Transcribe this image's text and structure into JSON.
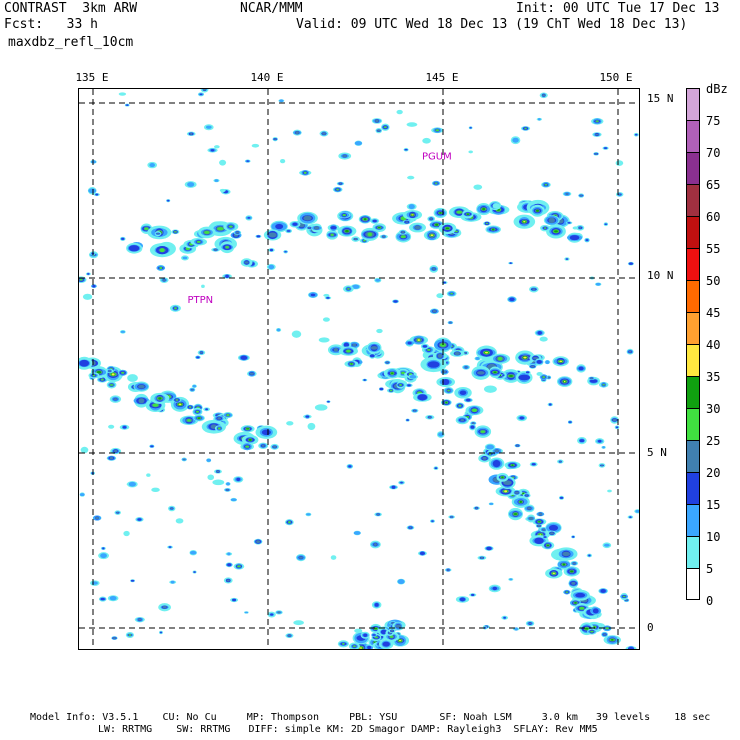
{
  "header": {
    "left_line1": "CONTRAST  3km ARW",
    "left_line2": "Fcst:   33 h",
    "left_line3": "maxdbz_refl_10cm",
    "center": "NCAR/MMM",
    "init": "Init: 00 UTC Tue 17 Dec 13",
    "valid": "Valid: 09 UTC Wed 18 Dec 13 (19 ChT Wed 18 Dec 13)"
  },
  "map": {
    "lon_labels": [
      "135 E",
      "140 E",
      "145 E",
      "150 E"
    ],
    "lat_labels": [
      "15 N",
      "10 N",
      "5 N",
      "0"
    ],
    "stations": [
      {
        "id": "PGUM",
        "lon": 144.8,
        "lat": 13.5
      },
      {
        "id": "PTPN",
        "lon": 138.1,
        "lat": 9.4
      }
    ],
    "extent": {
      "lon_min": 134.6,
      "lon_max": 150.6,
      "lat_min": -0.6,
      "lat_max": 15.4
    },
    "storm_bands": [
      {
        "name": "northern band",
        "points": [
          [
            135.6,
            11.2
          ],
          [
            138,
            11.0
          ],
          [
            140.5,
            11.6
          ],
          [
            143,
            11.4
          ],
          [
            145,
            11.6
          ],
          [
            147.5,
            11.8
          ],
          [
            149.2,
            11.3
          ]
        ],
        "intensity": 0.8
      },
      {
        "name": "central band",
        "points": [
          [
            144.2,
            8.0
          ],
          [
            145.5,
            7.7
          ],
          [
            147.5,
            7.4
          ],
          [
            149.5,
            7.2
          ]
        ],
        "intensity": 0.9
      },
      {
        "name": "mid line",
        "points": [
          [
            142,
            8.0
          ],
          [
            143.2,
            7.6
          ],
          [
            144.6,
            6.6
          ]
        ],
        "intensity": 0.7
      },
      {
        "name": "west band",
        "points": [
          [
            134.9,
            7.4
          ],
          [
            136.5,
            6.8
          ],
          [
            138.2,
            6.0
          ],
          [
            140,
            5.4
          ]
        ],
        "intensity": 0.85
      },
      {
        "name": "diagonal band",
        "points": [
          [
            145.3,
            6.8
          ],
          [
            146.2,
            5.2
          ],
          [
            147.3,
            3.6
          ],
          [
            148.2,
            2.2
          ],
          [
            149,
            0.8
          ],
          [
            149.8,
            -0.4
          ]
        ],
        "intensity": 0.75
      },
      {
        "name": "southern cluster",
        "points": [
          [
            142.2,
            -0.2
          ],
          [
            143.2,
            -0.3
          ],
          [
            143.9,
            0.0
          ]
        ],
        "intensity": 0.8
      }
    ]
  },
  "colorbar": {
    "unit": "dBz",
    "levels": [
      {
        "value": "75",
        "color": "#d3a5d8"
      },
      {
        "value": "70",
        "color": "#b060b8"
      },
      {
        "value": "65",
        "color": "#8a3090"
      },
      {
        "value": "60",
        "color": "#a03040"
      },
      {
        "value": "55",
        "color": "#c01010"
      },
      {
        "value": "50",
        "color": "#ee1010"
      },
      {
        "value": "45",
        "color": "#ff6a00"
      },
      {
        "value": "40",
        "color": "#ffa030"
      },
      {
        "value": "35",
        "color": "#ffe840"
      },
      {
        "value": "30",
        "color": "#10a010"
      },
      {
        "value": "25",
        "color": "#40e040"
      },
      {
        "value": "20",
        "color": "#4080b0"
      },
      {
        "value": "15",
        "color": "#2040e0"
      },
      {
        "value": "10",
        "color": "#3aa6ff"
      },
      {
        "value": "5",
        "color": "#70f0f0"
      },
      {
        "value": "0",
        "color": "#ffffff"
      }
    ]
  },
  "footer": {
    "line1": "Model Info: V3.5.1    CU: No Cu     MP: Thompson     PBL: YSU       SF: Noah LSM     3.0 km   39 levels    18 sec",
    "line2": "LW: RRTMG    SW: RRTMG   DIFF: simple KM: 2D Smagor DAMP: Rayleigh3  SFLAY: Rev MM5"
  }
}
